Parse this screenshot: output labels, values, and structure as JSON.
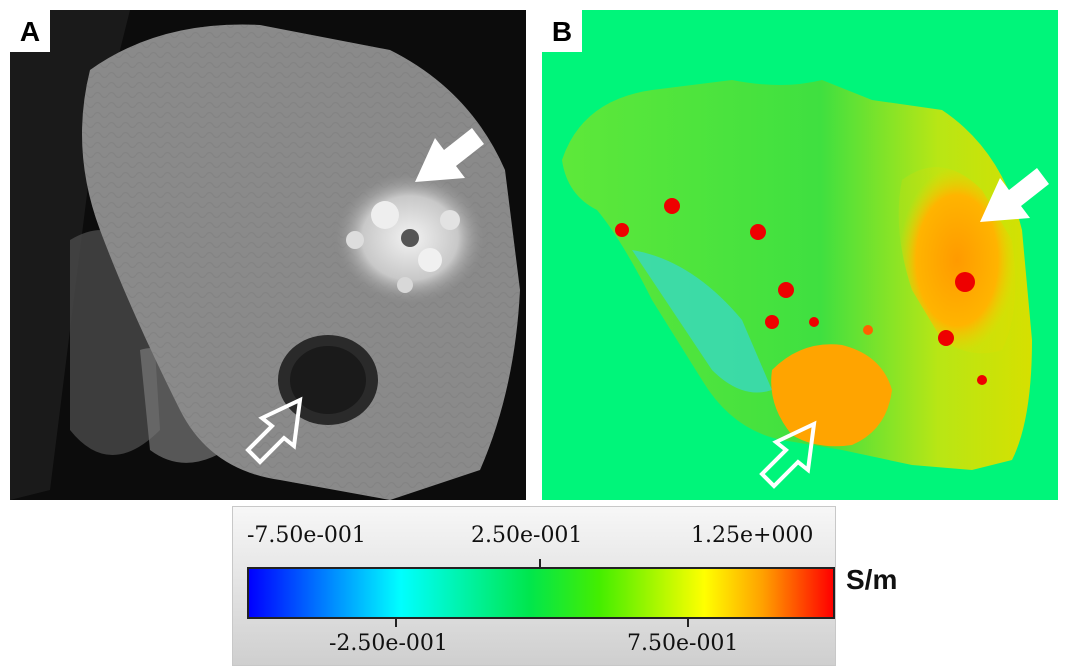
{
  "panels": [
    {
      "label": "A"
    },
    {
      "label": "B"
    }
  ],
  "colorbar": {
    "top_labels": [
      "-7.50e-001",
      "2.50e-001",
      "1.25e+000"
    ],
    "bottom_labels": [
      "-2.50e-001",
      "7.50e-001"
    ],
    "unit": "S/m",
    "colors": [
      "#0000ff",
      "#00ffff",
      "#00e64d",
      "#ffff00",
      "#ffa000",
      "#ff0000"
    ]
  }
}
